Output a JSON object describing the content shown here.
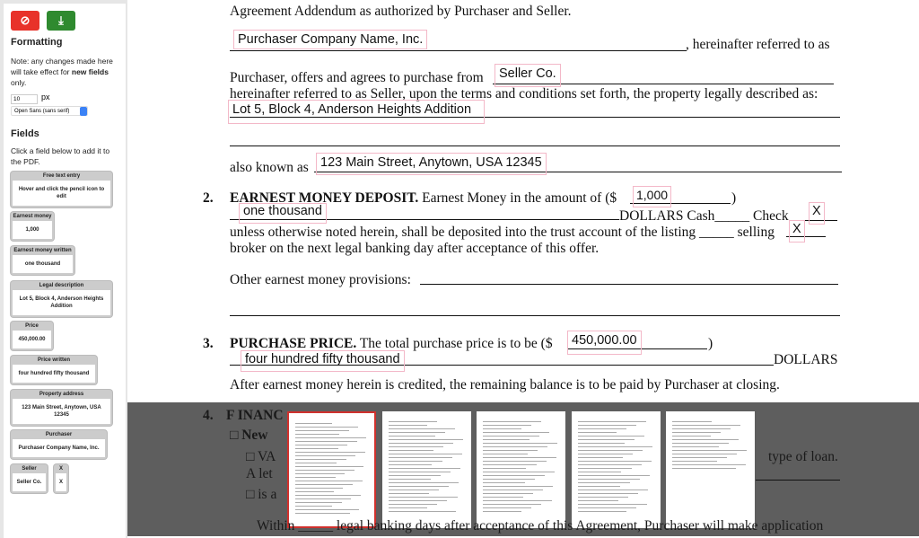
{
  "sidebar": {
    "formatting_title": "Formatting",
    "note_pre": "Note: any changes made here will take effect for ",
    "note_bold": "new fields",
    "note_post": " only.",
    "font_size": "10",
    "font_unit": "px",
    "font_family": "Open Sans (sans serif)",
    "fields_title": "Fields",
    "fields_help": "Click a field below to add it to the PDF.",
    "cards": [
      {
        "title": "Free text entry",
        "value": "Hover and click the pencil icon to edit"
      },
      {
        "title": "Earnest money",
        "value": "1,000"
      },
      {
        "title": "Earnest money written",
        "value": "one thousand"
      },
      {
        "title": "Legal description",
        "value": "Lot 5, Block 4, Anderson Heights Addition"
      },
      {
        "title": "Price",
        "value": "450,000.00"
      },
      {
        "title": "Price written",
        "value": "four hundred fifty thousand"
      },
      {
        "title": "Property address",
        "value": "123 Main Street, Anytown, USA 12345"
      },
      {
        "title": "Purchaser",
        "value": "Purchaser Company Name, Inc."
      },
      {
        "title": "Seller",
        "value": "Seller Co."
      },
      {
        "title": "X",
        "value": "X"
      }
    ],
    "colors": {
      "cancel": "#e8322a",
      "download": "#2f8a2f"
    }
  },
  "doc": {
    "l1": "Agreement Addendum as authorized by Purchaser and Seller.",
    "l2": ", hereinafter referred to as",
    "l3": "Purchaser, offers and agrees to purchase from",
    "l4": "hereinafter referred to as Seller, upon the terms and conditions set forth, the property legally  described as:",
    "l5": "also known as",
    "s2_num": "2.",
    "s2_title": "EARNEST MONEY DEPOSIT.",
    "s2_a": " Earnest Money in the amount of  ($",
    "s2_b": "DOLLARS    Cash_____  Check",
    "s2_c": "unless otherwise noted herein, shall be deposited into the trust account of the listing _____ selling",
    "s2_d": "broker on the next legal banking day after acceptance of this offer.",
    "s2_e": "Other earnest money provisions:",
    "s3_num": "3.",
    "s3_title": "PURCHASE PRICE.",
    "s3_a": " The total purchase price is to be ($",
    "s3_b": "DOLLARS",
    "s3_c": "After earnest money herein is credited, the remaining balance is to be paid by Purchaser at closing.",
    "s4_num": "4.",
    "s4_title": "F INANC",
    "s4_a": "□  New",
    "s4_b": "□ VA",
    "s4_c": "type of loan.",
    "s4_d": "A let",
    "s4_e": "□ is a",
    "s4_f": "Within _____ legal banking days after acceptance of this Agreement, Purchaser will make application",
    "fields": {
      "purchaser": "Purchaser Company Name, Inc.",
      "seller": "Seller Co.",
      "legal": "Lot 5, Block 4, Anderson Heights Addition",
      "address": "123 Main Street, Anytown, USA 12345",
      "earnest": "1,000",
      "earnest_written": "one thousand",
      "check_x": "X",
      "selling_x": "X",
      "price": "450,000.00",
      "price_written": "four hundred fifty thousand"
    }
  },
  "tray": {
    "pages": 5,
    "selected": 1
  }
}
